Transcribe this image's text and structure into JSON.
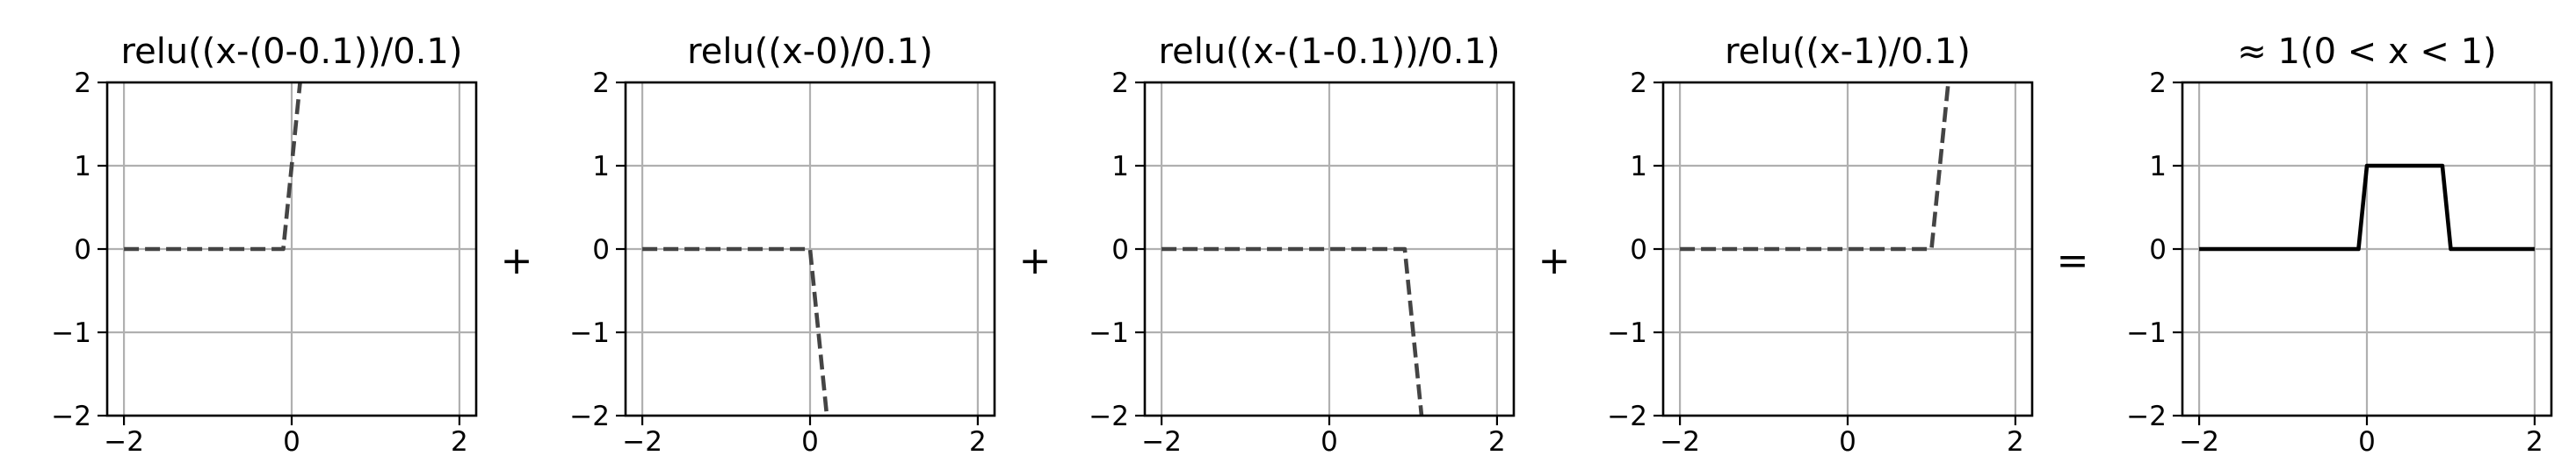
{
  "figure": {
    "operators": [
      "+",
      "+",
      "+",
      "="
    ]
  },
  "chart_data": [
    {
      "type": "line",
      "title": "relu((x-(0-0.1))/0.1)",
      "xlim": [
        -2.2,
        2.2
      ],
      "ylim": [
        -2,
        2
      ],
      "xticks": [
        -2,
        0,
        2
      ],
      "yticks": [
        -2,
        -1,
        0,
        1,
        2
      ],
      "xtick_labels": [
        "−2",
        "0",
        "2"
      ],
      "ytick_labels": [
        "−2",
        "−1",
        "0",
        "1",
        "2"
      ],
      "grid": true,
      "series": [
        {
          "style": "dashed",
          "color": "#444444",
          "x": [
            -2,
            -0.1,
            0.1
          ],
          "y": [
            0,
            0,
            2
          ]
        }
      ]
    },
    {
      "type": "line",
      "title": "relu((x-0)/0.1)",
      "xlim": [
        -2.2,
        2.2
      ],
      "ylim": [
        -2,
        2
      ],
      "xticks": [
        -2,
        0,
        2
      ],
      "yticks": [
        -2,
        -1,
        0,
        1,
        2
      ],
      "xtick_labels": [
        "−2",
        "0",
        "2"
      ],
      "ytick_labels": [
        "−2",
        "−1",
        "0",
        "1",
        "2"
      ],
      "grid": true,
      "series": [
        {
          "style": "dashed",
          "color": "#444444",
          "x": [
            -2,
            0,
            0.2
          ],
          "y": [
            0,
            0,
            -2
          ]
        }
      ]
    },
    {
      "type": "line",
      "title": "relu((x-(1-0.1))/0.1)",
      "xlim": [
        -2.2,
        2.2
      ],
      "ylim": [
        -2,
        2
      ],
      "xticks": [
        -2,
        0,
        2
      ],
      "yticks": [
        -2,
        -1,
        0,
        1,
        2
      ],
      "xtick_labels": [
        "−2",
        "0",
        "2"
      ],
      "ytick_labels": [
        "−2",
        "−1",
        "0",
        "1",
        "2"
      ],
      "grid": true,
      "series": [
        {
          "style": "dashed",
          "color": "#444444",
          "x": [
            -2,
            0.9,
            1.1
          ],
          "y": [
            0,
            0,
            -2
          ]
        }
      ]
    },
    {
      "type": "line",
      "title": "relu((x-1)/0.1)",
      "xlim": [
        -2.2,
        2.2
      ],
      "ylim": [
        -2,
        2
      ],
      "xticks": [
        -2,
        0,
        2
      ],
      "yticks": [
        -2,
        -1,
        0,
        1,
        2
      ],
      "xtick_labels": [
        "−2",
        "0",
        "2"
      ],
      "ytick_labels": [
        "−2",
        "−1",
        "0",
        "1",
        "2"
      ],
      "grid": true,
      "series": [
        {
          "style": "dashed",
          "color": "#444444",
          "x": [
            -2,
            1,
            1.2
          ],
          "y": [
            0,
            0,
            2
          ]
        }
      ]
    },
    {
      "type": "line",
      "title": "≈  1(0 < x < 1)",
      "xlim": [
        -2.2,
        2.2
      ],
      "ylim": [
        -2,
        2
      ],
      "xticks": [
        -2,
        0,
        2
      ],
      "yticks": [
        -2,
        -1,
        0,
        1,
        2
      ],
      "xtick_labels": [
        "−2",
        "0",
        "2"
      ],
      "ytick_labels": [
        "−2",
        "−1",
        "0",
        "1",
        "2"
      ],
      "grid": true,
      "series": [
        {
          "style": "solid",
          "color": "#000000",
          "x": [
            -2,
            -0.1,
            0.0,
            0.9,
            1.0,
            2
          ],
          "y": [
            0,
            0,
            1,
            1,
            0,
            0
          ]
        }
      ]
    }
  ]
}
